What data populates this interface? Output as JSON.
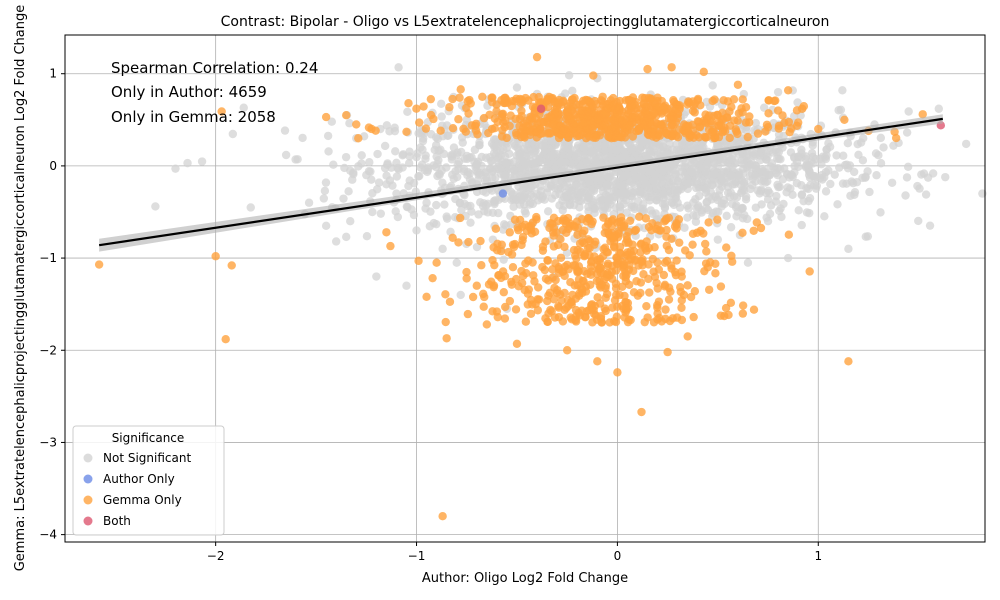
{
  "chart_data": {
    "type": "scatter",
    "title": "Contrast: Bipolar - Oligo vs L5extratelencephalicprojectingglutamatergiccorticalneuron",
    "xlabel": "Author: Oligo Log2 Fold Change",
    "ylabel": "Gemma: L5extratelencephalicprojectingglutamatergiccorticalneuron Log2 Fold Change",
    "xlim": [
      -2.75,
      1.83
    ],
    "ylim": [
      -4.08,
      1.42
    ],
    "xticks": [
      -2,
      -1,
      0,
      1
    ],
    "yticks": [
      -4,
      -3,
      -2,
      -1,
      0,
      1
    ],
    "xtick_labels": [
      "−2",
      "−1",
      "0",
      "1"
    ],
    "ytick_labels": [
      "−4",
      "−3",
      "−2",
      "−1",
      "0",
      "1"
    ],
    "grid": true,
    "annotations": [
      "Spearman Correlation: 0.24",
      "Only in Author: 4659",
      "Only in Gemma: 2058"
    ],
    "legend": {
      "title": "Significance",
      "placement": "lower-left",
      "entries": [
        {
          "label": "Not Significant",
          "color": "#d3d3d3"
        },
        {
          "label": "Author Only",
          "color": "#6b8be6"
        },
        {
          "label": "Gemma Only",
          "color": "#ffa23e"
        },
        {
          "label": "Both",
          "color": "#dd5770"
        }
      ]
    },
    "regression": {
      "x": [
        -2.58,
        1.62
      ],
      "y": [
        -0.86,
        0.51
      ],
      "color": "#000000"
    },
    "series": [
      {
        "name": "Not Significant",
        "color": "#d3d3d3",
        "points": [
          [
            -2.3,
            -0.44
          ],
          [
            -2.2,
            -0.03
          ],
          [
            -2.14,
            0.03
          ],
          [
            -1.45,
            -0.65
          ],
          [
            -1.42,
            -0.45
          ],
          [
            -1.4,
            -0.82
          ],
          [
            -1.35,
            -0.77
          ],
          [
            -1.33,
            -0.6
          ],
          [
            -1.32,
            -0.15
          ],
          [
            -1.3,
            0.3
          ],
          [
            -1.25,
            -0.1
          ],
          [
            -1.22,
            -0.5
          ],
          [
            -1.2,
            -1.2
          ],
          [
            -1.18,
            0.4
          ],
          [
            -1.15,
            -0.2
          ],
          [
            -1.1,
            -0.3
          ],
          [
            -1.05,
            -1.3
          ],
          [
            -1.0,
            -0.7
          ],
          [
            -0.98,
            0.2
          ],
          [
            -0.95,
            -0.4
          ],
          [
            -0.9,
            0.1
          ],
          [
            -0.87,
            -0.9
          ],
          [
            -0.85,
            -0.55
          ],
          [
            -0.8,
            -1.05
          ],
          [
            -0.78,
            -1.4
          ],
          [
            -0.75,
            0.5
          ],
          [
            -0.7,
            -0.2
          ],
          [
            -0.62,
            -0.8
          ],
          [
            -0.55,
            -1.55
          ],
          [
            -0.5,
            0.85
          ],
          [
            -0.45,
            -0.35
          ],
          [
            -0.4,
            0.78
          ],
          [
            -0.1,
            0.95
          ],
          [
            0.0,
            -0.3
          ],
          [
            0.2,
            0.6
          ],
          [
            0.3,
            -0.4
          ],
          [
            0.45,
            0.45
          ],
          [
            0.5,
            -0.8
          ],
          [
            0.55,
            0.3
          ],
          [
            0.6,
            -0.5
          ],
          [
            0.65,
            -1.05
          ],
          [
            0.7,
            0.2
          ],
          [
            0.75,
            -0.6
          ],
          [
            0.8,
            0.8
          ],
          [
            0.85,
            -1.0
          ],
          [
            0.9,
            0.1
          ],
          [
            0.95,
            -0.25
          ],
          [
            1.0,
            0.35
          ],
          [
            1.05,
            -0.05
          ],
          [
            1.12,
            0.82
          ],
          [
            1.15,
            -0.9
          ],
          [
            1.2,
            0.12
          ],
          [
            1.22,
            -0.13
          ],
          [
            1.28,
            0.45
          ],
          [
            1.4,
            0.25
          ],
          [
            1.45,
            0.59
          ],
          [
            1.6,
            0.62
          ]
        ],
        "cloud": {
          "x_center": 0.0,
          "x_spread": 0.55,
          "y_center": 0.0,
          "y_spread": 0.3,
          "count": 2200
        }
      },
      {
        "name": "Gemma Only",
        "color": "#ffa23e",
        "points": [
          [
            -2.58,
            -1.07
          ],
          [
            -1.97,
            0.59
          ],
          [
            -1.95,
            -1.88
          ],
          [
            -2.0,
            -0.98
          ],
          [
            -1.92,
            -1.08
          ],
          [
            -1.45,
            0.53
          ],
          [
            -1.35,
            0.55
          ],
          [
            -1.3,
            0.45
          ],
          [
            -1.29,
            0.3
          ],
          [
            -1.15,
            -0.72
          ],
          [
            -1.13,
            -0.87
          ],
          [
            -1.05,
            0.37
          ],
          [
            -1.04,
            0.68
          ],
          [
            -0.95,
            -1.42
          ],
          [
            -0.87,
            -3.8
          ],
          [
            -0.85,
            -1.87
          ],
          [
            -0.9,
            -1.05
          ],
          [
            -0.82,
            -0.78
          ],
          [
            -0.78,
            0.83
          ],
          [
            -0.7,
            -1.3
          ],
          [
            -0.65,
            -1.72
          ],
          [
            -0.6,
            -1.58
          ],
          [
            -0.5,
            -1.93
          ],
          [
            -0.48,
            0.68
          ],
          [
            -0.4,
            1.18
          ],
          [
            -0.25,
            -2.0
          ],
          [
            -0.1,
            -2.12
          ],
          [
            0.0,
            -2.24
          ],
          [
            0.12,
            -2.67
          ],
          [
            0.2,
            -1.6
          ],
          [
            0.25,
            -2.02
          ],
          [
            0.35,
            -1.85
          ],
          [
            0.45,
            -1.1
          ],
          [
            0.5,
            0.55
          ],
          [
            0.55,
            0.7
          ],
          [
            0.6,
            0.88
          ],
          [
            0.68,
            -1.56
          ],
          [
            0.7,
            0.35
          ],
          [
            0.75,
            0.42
          ],
          [
            0.8,
            0.6
          ],
          [
            0.85,
            0.82
          ],
          [
            0.9,
            0.47
          ],
          [
            0.92,
            0.62
          ],
          [
            1.0,
            0.4
          ],
          [
            1.13,
            0.5
          ],
          [
            1.15,
            -2.12
          ],
          [
            1.25,
            0.38
          ],
          [
            1.38,
            0.37
          ],
          [
            1.52,
            0.56
          ],
          [
            0.43,
            1.02
          ],
          [
            0.27,
            1.07
          ],
          [
            -0.12,
            0.98
          ],
          [
            0.15,
            1.05
          ]
        ],
        "bands": [
          {
            "x_center": -0.05,
            "x_spread": 0.38,
            "y_min": 0.3,
            "y_max": 0.75,
            "count": 650
          },
          {
            "x_center": -0.1,
            "x_spread": 0.32,
            "y_min": -1.7,
            "y_max": -0.55,
            "count": 520
          }
        ]
      },
      {
        "name": "Author Only",
        "color": "#6b8be6",
        "points": [
          [
            -0.57,
            -0.3
          ]
        ]
      },
      {
        "name": "Both",
        "color": "#dd5770",
        "points": [
          [
            1.61,
            0.44
          ],
          [
            -0.38,
            0.62
          ]
        ]
      }
    ]
  }
}
